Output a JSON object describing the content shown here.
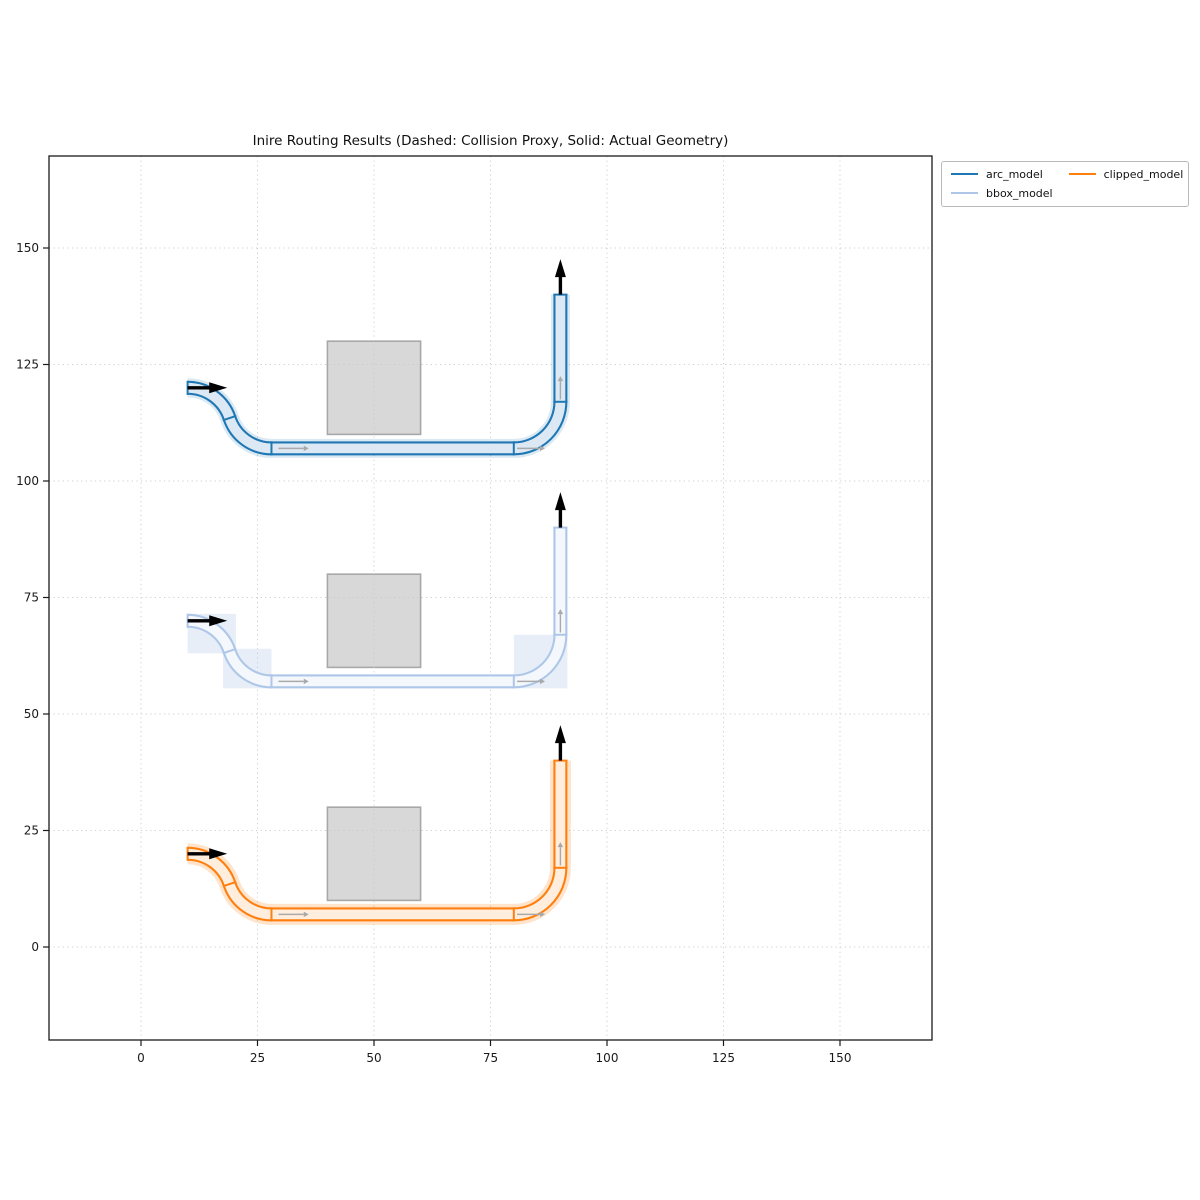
{
  "title": "Inire Routing Results (Dashed: Collision Proxy, Solid: Actual Geometry)",
  "legend": {
    "items": [
      {
        "label": "arc_model",
        "color": "#1f77b4"
      },
      {
        "label": "bbox_model",
        "color": "#aec7e8"
      },
      {
        "label": "clipped_model",
        "color": "#ff7f0e"
      }
    ]
  },
  "axes": {
    "x_ticks": [
      0,
      25,
      50,
      75,
      100,
      125,
      150
    ],
    "y_ticks": [
      0,
      25,
      50,
      75,
      100,
      125,
      150
    ],
    "xlim": [
      -19.7,
      169.8
    ],
    "ylim": [
      -20.1,
      169.7
    ],
    "grid": "dotted"
  },
  "chart_data": {
    "type": "geometric-routing-plot",
    "title": "Inire Routing Results (Dashed: Collision Proxy, Solid: Actual Geometry)",
    "equal_aspect": true,
    "obstacle_fill": "#d8d8d8",
    "obstacle_edge": "#a8a8a8",
    "direction_arrow_color": "#a9a9a9",
    "endpoint_arrow_color": "#000000",
    "pipe_half_width_units": 1.5,
    "s_curve": {
      "dx": 18,
      "dy": 13
    },
    "corner_radius": 10,
    "models": [
      {
        "name": "arc_model",
        "stroke": "#1f77b4",
        "fill": "#dce9f4",
        "halo": "rgba(31,119,180,0.16)",
        "halo_width_units": 4.1,
        "start": [
          10,
          120
        ],
        "run_y": 107,
        "corner_start_x": 80,
        "vertical_x": 90,
        "end_y": 140,
        "waypoints": [
          [
            10,
            120
          ],
          [
            28,
            107
          ],
          [
            80,
            107
          ],
          [
            90,
            117
          ],
          [
            90,
            140
          ]
        ],
        "obstacle": {
          "x": [
            40,
            60
          ],
          "y": [
            110,
            130
          ]
        },
        "proxy_bboxes": []
      },
      {
        "name": "bbox_model",
        "stroke": "#aec7e8",
        "fill": "#f4f8fc",
        "halo": null,
        "halo_width_units": 0,
        "start": [
          10,
          70
        ],
        "run_y": 57,
        "corner_start_x": 80,
        "vertical_x": 90,
        "end_y": 90,
        "waypoints": [
          [
            10,
            70
          ],
          [
            28,
            57
          ],
          [
            80,
            57
          ],
          [
            90,
            67
          ],
          [
            90,
            90
          ]
        ],
        "obstacle": {
          "x": [
            40,
            60
          ],
          "y": [
            60,
            80
          ]
        },
        "proxy_fill": "rgba(174,199,232,0.30)",
        "proxy_bboxes": [
          [
            10.0,
            63.0,
            20.4,
            71.5
          ],
          [
            17.6,
            55.5,
            28.0,
            64.0
          ],
          [
            28.0,
            55.5,
            80.0,
            58.5
          ],
          [
            80.0,
            55.5,
            91.5,
            67.0
          ],
          [
            88.5,
            67.0,
            91.5,
            90.0
          ]
        ]
      },
      {
        "name": "clipped_model",
        "stroke": "#ff7f0e",
        "fill": "#ffeedd",
        "halo": "rgba(255,127,14,0.22)",
        "halo_width_units": 4.5,
        "start": [
          10,
          20
        ],
        "run_y": 7,
        "corner_start_x": 80,
        "vertical_x": 90,
        "end_y": 40,
        "waypoints": [
          [
            10,
            20
          ],
          [
            28,
            7
          ],
          [
            80,
            7
          ],
          [
            90,
            17
          ],
          [
            90,
            40
          ]
        ],
        "obstacle": {
          "x": [
            40,
            60
          ],
          "y": [
            10,
            30
          ]
        },
        "proxy_bboxes": []
      }
    ]
  }
}
